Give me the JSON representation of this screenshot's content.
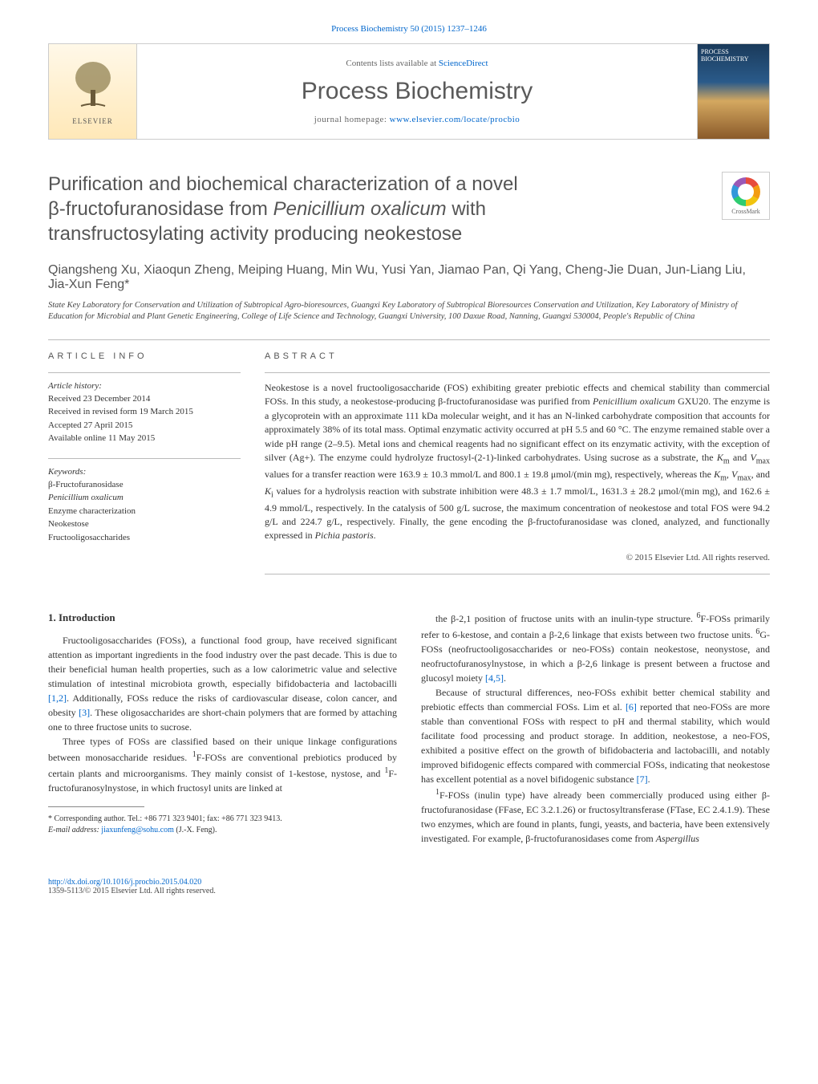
{
  "header": {
    "citation": "Process Biochemistry 50 (2015) 1237–1246",
    "contents_prefix": "Contents lists available at ",
    "contents_link": "ScienceDirect",
    "journal_title": "Process Biochemistry",
    "homepage_prefix": "journal homepage: ",
    "homepage_url": "www.elsevier.com/locate/procbio",
    "elsevier_label": "ELSEVIER",
    "cover_text": "PROCESS BIOCHEMISTRY",
    "crossmark": "CrossMark"
  },
  "article": {
    "title_line1": "Purification and biochemical characterization of a novel",
    "title_line2": "β-fructofuranosidase from ",
    "title_italic": "Penicillium oxalicum",
    "title_line2_suffix": " with",
    "title_line3": "transfructosylating activity producing neokestose",
    "authors": "Qiangsheng Xu, Xiaoqun Zheng, Meiping Huang, Min Wu, Yusi Yan, Jiamao Pan, Qi Yang, Cheng-Jie Duan, Jun-Liang Liu, Jia-Xun Feng*",
    "affiliation": "State Key Laboratory for Conservation and Utilization of Subtropical Agro-bioresources, Guangxi Key Laboratory of Subtropical Bioresources Conservation and Utilization, Key Laboratory of Ministry of Education for Microbial and Plant Genetic Engineering, College of Life Science and Technology, Guangxi University, 100 Daxue Road, Nanning, Guangxi 530004, People's Republic of China"
  },
  "info": {
    "heading": "ARTICLE INFO",
    "history_label": "Article history:",
    "history_lines": "Received 23 December 2014\nReceived in revised form 19 March 2015\nAccepted 27 April 2015\nAvailable online 11 May 2015",
    "keywords_label": "Keywords:",
    "keywords": "β-Fructofuranosidase\nPenicillium oxalicum\nEnzyme characterization\nNeokestose\nFructooligosaccharides"
  },
  "abstract": {
    "heading": "ABSTRACT",
    "text": "Neokestose is a novel fructooligosaccharide (FOS) exhibiting greater prebiotic effects and chemical stability than commercial FOSs. In this study, a neokestose-producing β-fructofuranosidase was purified from Penicillium oxalicum GXU20. The enzyme is a glycoprotein with an approximate 111 kDa molecular weight, and it has an N-linked carbohydrate composition that accounts for approximately 38% of its total mass. Optimal enzymatic activity occurred at pH 5.5 and 60 °C. The enzyme remained stable over a wide pH range (2–9.5). Metal ions and chemical reagents had no significant effect on its enzymatic activity, with the exception of silver (Ag+). The enzyme could hydrolyze fructosyl-(2-1)-linked carbohydrates. Using sucrose as a substrate, the Km and Vmax values for a transfer reaction were 163.9 ± 10.3 mmol/L and 800.1 ± 19.8 μmol/(min mg), respectively, whereas the Km, Vmax, and Ki values for a hydrolysis reaction with substrate inhibition were 48.3 ± 1.7 mmol/L, 1631.3 ± 28.2 μmol/(min mg), and 162.6 ± 4.9 mmol/L, respectively. In the catalysis of 500 g/L sucrose, the maximum concentration of neokestose and total FOS were 94.2 g/L and 224.7 g/L, respectively. Finally, the gene encoding the β-fructofuranosidase was cloned, analyzed, and functionally expressed in Pichia pastoris.",
    "copyright": "© 2015 Elsevier Ltd. All rights reserved."
  },
  "body": {
    "section_title": "1. Introduction",
    "p1": "Fructooligosaccharides (FOSs), a functional food group, have received significant attention as important ingredients in the food industry over the past decade. This is due to their beneficial human health properties, such as a low calorimetric value and selective stimulation of intestinal microbiota growth, especially bifidobacteria and lactobacilli [1,2]. Additionally, FOSs reduce the risks of cardiovascular disease, colon cancer, and obesity [3]. These oligosaccharides are short-chain polymers that are formed by attaching one to three fructose units to sucrose.",
    "p2": "Three types of FOSs are classified based on their unique linkage configurations between monosaccharide residues. 1F-FOSs are conventional prebiotics produced by certain plants and microorganisms. They mainly consist of 1-kestose, nystose, and 1F-fructofuranosylnystose, in which fructosyl units are linked at",
    "p3": "the β-2,1 position of fructose units with an inulin-type structure. 6F-FOSs primarily refer to 6-kestose, and contain a β-2,6 linkage that exists between two fructose units. 6G-FOSs (neofructooligosaccharides or neo-FOSs) contain neokestose, neonystose, and neofructofuranosylnystose, in which a β-2,6 linkage is present between a fructose and glucosyl moiety [4,5].",
    "p4": "Because of structural differences, neo-FOSs exhibit better chemical stability and prebiotic effects than commercial FOSs. Lim et al. [6] reported that neo-FOSs are more stable than conventional FOSs with respect to pH and thermal stability, which would facilitate food processing and product storage. In addition, neokestose, a neo-FOS, exhibited a positive effect on the growth of bifidobacteria and lactobacilli, and notably improved bifidogenic effects compared with commercial FOSs, indicating that neokestose has excellent potential as a novel bifidogenic substance [7].",
    "p5": "1F-FOSs (inulin type) have already been commercially produced using either β-fructofuranosidase (FFase, EC 3.2.1.26) or fructosyltransferase (FTase, EC 2.4.1.9). These two enzymes, which are found in plants, fungi, yeasts, and bacteria, have been extensively investigated. For example, β-fructofuranosidases come from Aspergillus"
  },
  "footnote": {
    "corr": "* Corresponding author. Tel.: +86 771 323 9401; fax: +86 771 323 9413.",
    "email_label": "E-mail address: ",
    "email": "jiaxunfeng@sohu.com",
    "email_suffix": " (J.-X. Feng)."
  },
  "footer": {
    "doi": "http://dx.doi.org/10.1016/j.procbio.2015.04.020",
    "issn": "1359-5113/© 2015 Elsevier Ltd. All rights reserved."
  },
  "refs": {
    "r12": "[1,2]",
    "r3": "[3]",
    "r45": "[4,5]",
    "r6": "[6]",
    "r7": "[7]"
  }
}
